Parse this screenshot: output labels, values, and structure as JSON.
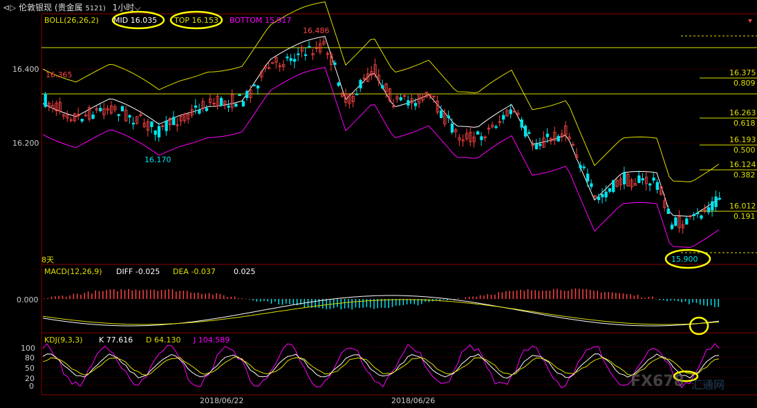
{
  "window": {
    "back_glyph": "⊲▷",
    "title": "伦敦银现 (贵金属",
    "code": "5121)",
    "period": "1小时",
    "period_arrow": "⌵"
  },
  "boll": {
    "label": "BOLL(26,26,2)",
    "mid": "MID 16.035",
    "top": "TOP 16.153",
    "bottom": "BOTTOM 15.917"
  },
  "price_axis": [
    "16.400",
    "16.200"
  ],
  "annotations": {
    "high_left": "16.365",
    "high_peak": "16.486",
    "low_left": "16.170",
    "low_recent": "15.900",
    "days": "8天"
  },
  "fib_levels": [
    {
      "price": "16.375",
      "ratio": "0.809"
    },
    {
      "price": "16.263",
      "ratio": "0.618"
    },
    {
      "price": "16.193",
      "ratio": "0.500"
    },
    {
      "price": "16.124",
      "ratio": "0.382"
    },
    {
      "price": "16.012",
      "ratio": "0.191"
    }
  ],
  "macd": {
    "label": "MACD(12,26,9)",
    "diff": "DIFF -0.025",
    "dea": "DEA -0.037",
    "val": "0.025",
    "zero": "0.000"
  },
  "kdj": {
    "label": "KDJ(9,3,3)",
    "k": "K 77.616",
    "d": "D 64.130",
    "j": "J 104.589",
    "axis": [
      "100",
      "80",
      "50",
      "20",
      "0"
    ]
  },
  "dates": [
    "2018/06/22",
    "2018/06/26"
  ],
  "watermark": "FX678",
  "watermark_cn": "汇通网",
  "colors": {
    "up": "#ff4444",
    "down": "#00e5ee",
    "mid": "#ffffff",
    "top": "#e0e000",
    "bottom": "#ff00ff",
    "highlight": "#ffff00",
    "grid": "#8b0000"
  }
}
